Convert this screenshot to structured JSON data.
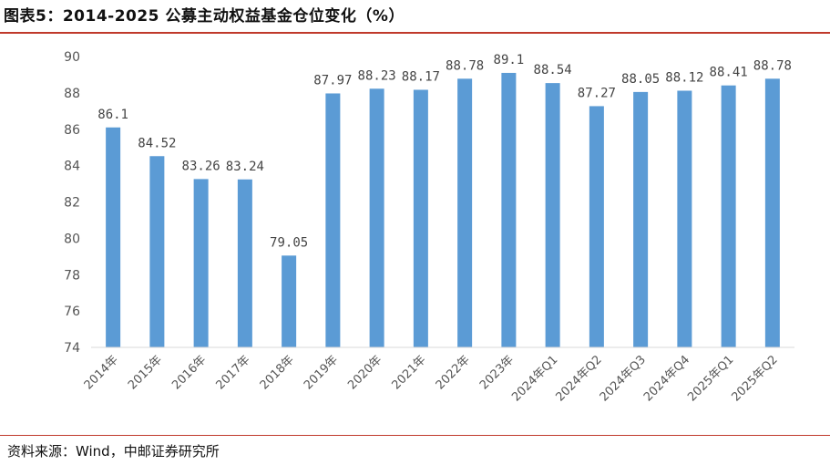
{
  "title": "图表5：2014-2025 公募主动权益基金仓位变化（%）",
  "source": "资料来源：Wind，中邮证券研究所",
  "colors": {
    "bar": "#5b9bd5",
    "rule": "#c0392b",
    "axis": "#d9d9d9"
  },
  "chart_data": {
    "type": "bar",
    "title": "",
    "xlabel": "",
    "ylabel": "",
    "ylim": [
      74,
      90
    ],
    "yticks": [
      74,
      76,
      78,
      80,
      82,
      84,
      86,
      88,
      90
    ],
    "grid": false,
    "categories": [
      "2014年",
      "2015年",
      "2016年",
      "2017年",
      "2018年",
      "2019年",
      "2020年",
      "2021年",
      "2022年",
      "2023年",
      "2024年Q1",
      "2024年Q2",
      "2024年Q3",
      "2024年Q4",
      "2025年Q1",
      "2025年Q2"
    ],
    "values": [
      86.1,
      84.52,
      83.26,
      83.24,
      79.05,
      87.97,
      88.23,
      88.17,
      88.78,
      89.1,
      88.54,
      87.27,
      88.05,
      88.12,
      88.41,
      88.78
    ],
    "value_labels": [
      "86.1",
      "84.52",
      "83.26",
      "83.24",
      "79.05",
      "87.97",
      "88.23",
      "88.17",
      "88.78",
      "89.1",
      "88.54",
      "87.27",
      "88.05",
      "88.12",
      "88.41",
      "88.78"
    ]
  }
}
